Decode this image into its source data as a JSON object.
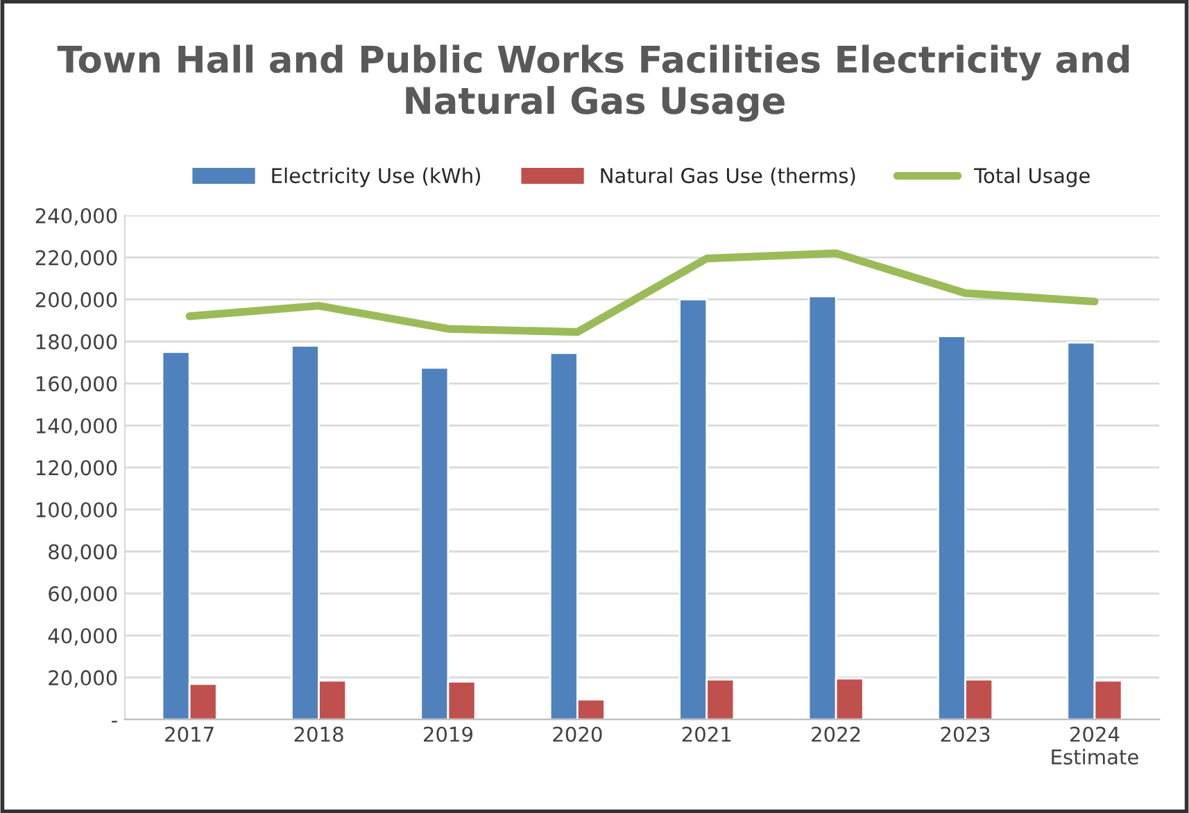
{
  "chart_data": {
    "type": "bar",
    "title": "Town Hall and Public Works Facilities Electricity and Natural Gas Usage",
    "categories": [
      "2017",
      "2018",
      "2019",
      "2020",
      "2021",
      "2022",
      "2023",
      "2024\nEstimate"
    ],
    "series": [
      {
        "name": "Electricity Use (kWh)",
        "color": "#4f81bd",
        "values": [
          175000,
          178000,
          167500,
          174500,
          200000,
          201500,
          182500,
          179500
        ]
      },
      {
        "name": "Natural Gas Use (therms)",
        "color": "#c0504d",
        "values": [
          17000,
          18500,
          18000,
          9500,
          19000,
          19500,
          19000,
          18500
        ]
      },
      {
        "name": "Total Usage",
        "type": "line",
        "color": "#9bbb59",
        "values": [
          192000,
          197000,
          186000,
          184500,
          219500,
          222000,
          203000,
          199000
        ]
      }
    ],
    "ylim": [
      0,
      240000
    ],
    "yticks": [
      {
        "value": 0,
        "label": "-"
      },
      {
        "value": 20000,
        "label": "20,000"
      },
      {
        "value": 40000,
        "label": "40,000"
      },
      {
        "value": 60000,
        "label": "60,000"
      },
      {
        "value": 80000,
        "label": "80,000"
      },
      {
        "value": 100000,
        "label": "100,000"
      },
      {
        "value": 120000,
        "label": "120,000"
      },
      {
        "value": 140000,
        "label": "140,000"
      },
      {
        "value": 160000,
        "label": "160,000"
      },
      {
        "value": 180000,
        "label": "180,000"
      },
      {
        "value": 200000,
        "label": "200,000"
      },
      {
        "value": 220000,
        "label": "220,000"
      },
      {
        "value": 240000,
        "label": "240,000"
      }
    ],
    "grid": "y",
    "legend": "top"
  }
}
